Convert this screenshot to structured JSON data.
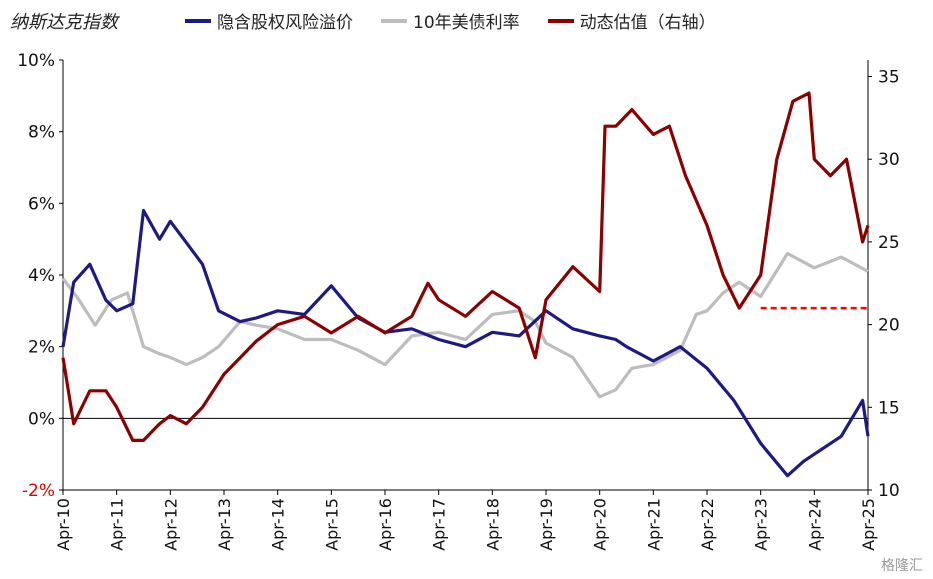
{
  "chart_data": {
    "type": "line",
    "title": "纳斯达克指数",
    "x_categories": [
      "Apr-10",
      "Apr-11",
      "Apr-12",
      "Apr-13",
      "Apr-14",
      "Apr-15",
      "Apr-16",
      "Apr-17",
      "Apr-18",
      "Apr-19",
      "Apr-20",
      "Apr-21",
      "Apr-22",
      "Apr-23",
      "Apr-24",
      "Apr-25"
    ],
    "left_axis": {
      "ylim": [
        -2,
        10
      ],
      "ticks": [
        "-2%",
        "0%",
        "2%",
        "4%",
        "6%",
        "8%",
        "10%"
      ]
    },
    "right_axis": {
      "ylim": [
        10,
        36
      ],
      "ticks": [
        "10",
        "15",
        "20",
        "25",
        "30",
        "35"
      ]
    },
    "series": [
      {
        "name": "隐含股权风险溢价",
        "color": "#1f1a7f",
        "axis": "left",
        "x": [
          0,
          0.2,
          0.5,
          0.8,
          1.0,
          1.3,
          1.5,
          1.8,
          2.0,
          2.3,
          2.6,
          2.9,
          3.3,
          3.6,
          4.0,
          4.5,
          5.0,
          5.5,
          6.0,
          6.5,
          7.0,
          7.5,
          8.0,
          8.5,
          9.0,
          9.5,
          10.0,
          10.3,
          10.5,
          11.0,
          11.5,
          12.0,
          12.5,
          13.0,
          13.5,
          13.8,
          14.0,
          14.5,
          14.9,
          15.0
        ],
        "values": [
          2.0,
          3.8,
          4.3,
          3.3,
          3.0,
          3.2,
          5.8,
          5.0,
          5.5,
          4.9,
          4.3,
          3.0,
          2.7,
          2.8,
          3.0,
          2.9,
          3.7,
          2.8,
          2.4,
          2.5,
          2.2,
          2.0,
          2.4,
          2.3,
          3.0,
          2.5,
          2.3,
          2.2,
          2.0,
          1.6,
          2.0,
          1.4,
          0.5,
          -0.7,
          -1.6,
          -1.2,
          -1.0,
          -0.5,
          0.5,
          -0.5
        ]
      },
      {
        "name": "10年美债利率",
        "color": "#bdbdbd",
        "axis": "left",
        "x": [
          0,
          0.3,
          0.6,
          0.9,
          1.2,
          1.5,
          1.8,
          2.0,
          2.3,
          2.6,
          2.9,
          3.3,
          3.6,
          4.0,
          4.5,
          5.0,
          5.5,
          6.0,
          6.5,
          7.0,
          7.5,
          8.0,
          8.5,
          8.8,
          9.0,
          9.5,
          10.0,
          10.3,
          10.6,
          11.0,
          11.5,
          11.8,
          12.0,
          12.3,
          12.6,
          13.0,
          13.5,
          14.0,
          14.5,
          15.0
        ],
        "values": [
          3.9,
          3.3,
          2.6,
          3.3,
          3.5,
          2.0,
          1.8,
          1.7,
          1.5,
          1.7,
          2.0,
          2.7,
          2.6,
          2.5,
          2.2,
          2.2,
          1.9,
          1.5,
          2.3,
          2.4,
          2.2,
          2.9,
          3.0,
          2.7,
          2.1,
          1.7,
          0.6,
          0.8,
          1.4,
          1.5,
          1.9,
          2.9,
          3.0,
          3.5,
          3.8,
          3.4,
          4.6,
          4.2,
          4.5,
          4.1
        ]
      },
      {
        "name": "动态估值（右轴）",
        "color": "#8b0000",
        "axis": "right",
        "x": [
          0,
          0.2,
          0.5,
          0.8,
          1.0,
          1.3,
          1.5,
          1.8,
          2.0,
          2.3,
          2.6,
          3.0,
          3.3,
          3.6,
          4.0,
          4.5,
          5.0,
          5.5,
          6.0,
          6.5,
          6.8,
          7.0,
          7.5,
          8.0,
          8.5,
          8.8,
          9.0,
          9.5,
          10.0,
          10.1,
          10.3,
          10.6,
          11.0,
          11.3,
          11.6,
          12.0,
          12.3,
          12.6,
          13.0,
          13.3,
          13.6,
          13.9,
          14.0,
          14.3,
          14.6,
          14.9,
          15.0
        ],
        "values": [
          18,
          14,
          16,
          16,
          15,
          13,
          13,
          14,
          14.5,
          14,
          15,
          17,
          18,
          19,
          20,
          20.5,
          19.5,
          20.5,
          19.5,
          20.5,
          22.5,
          21.5,
          20.5,
          22,
          21,
          18,
          21.5,
          23.5,
          22,
          32,
          32,
          33,
          31.5,
          32,
          29,
          26,
          23,
          21,
          23,
          30,
          33.5,
          34,
          30,
          29,
          30,
          25,
          26
        ]
      }
    ],
    "annotation": {
      "type": "dashed-line",
      "axis": "right",
      "value": 21,
      "from": "Apr-23",
      "to": "Apr-25",
      "color": "#ff0000"
    },
    "grid": false,
    "legend": "top"
  },
  "watermark": "格隆汇"
}
